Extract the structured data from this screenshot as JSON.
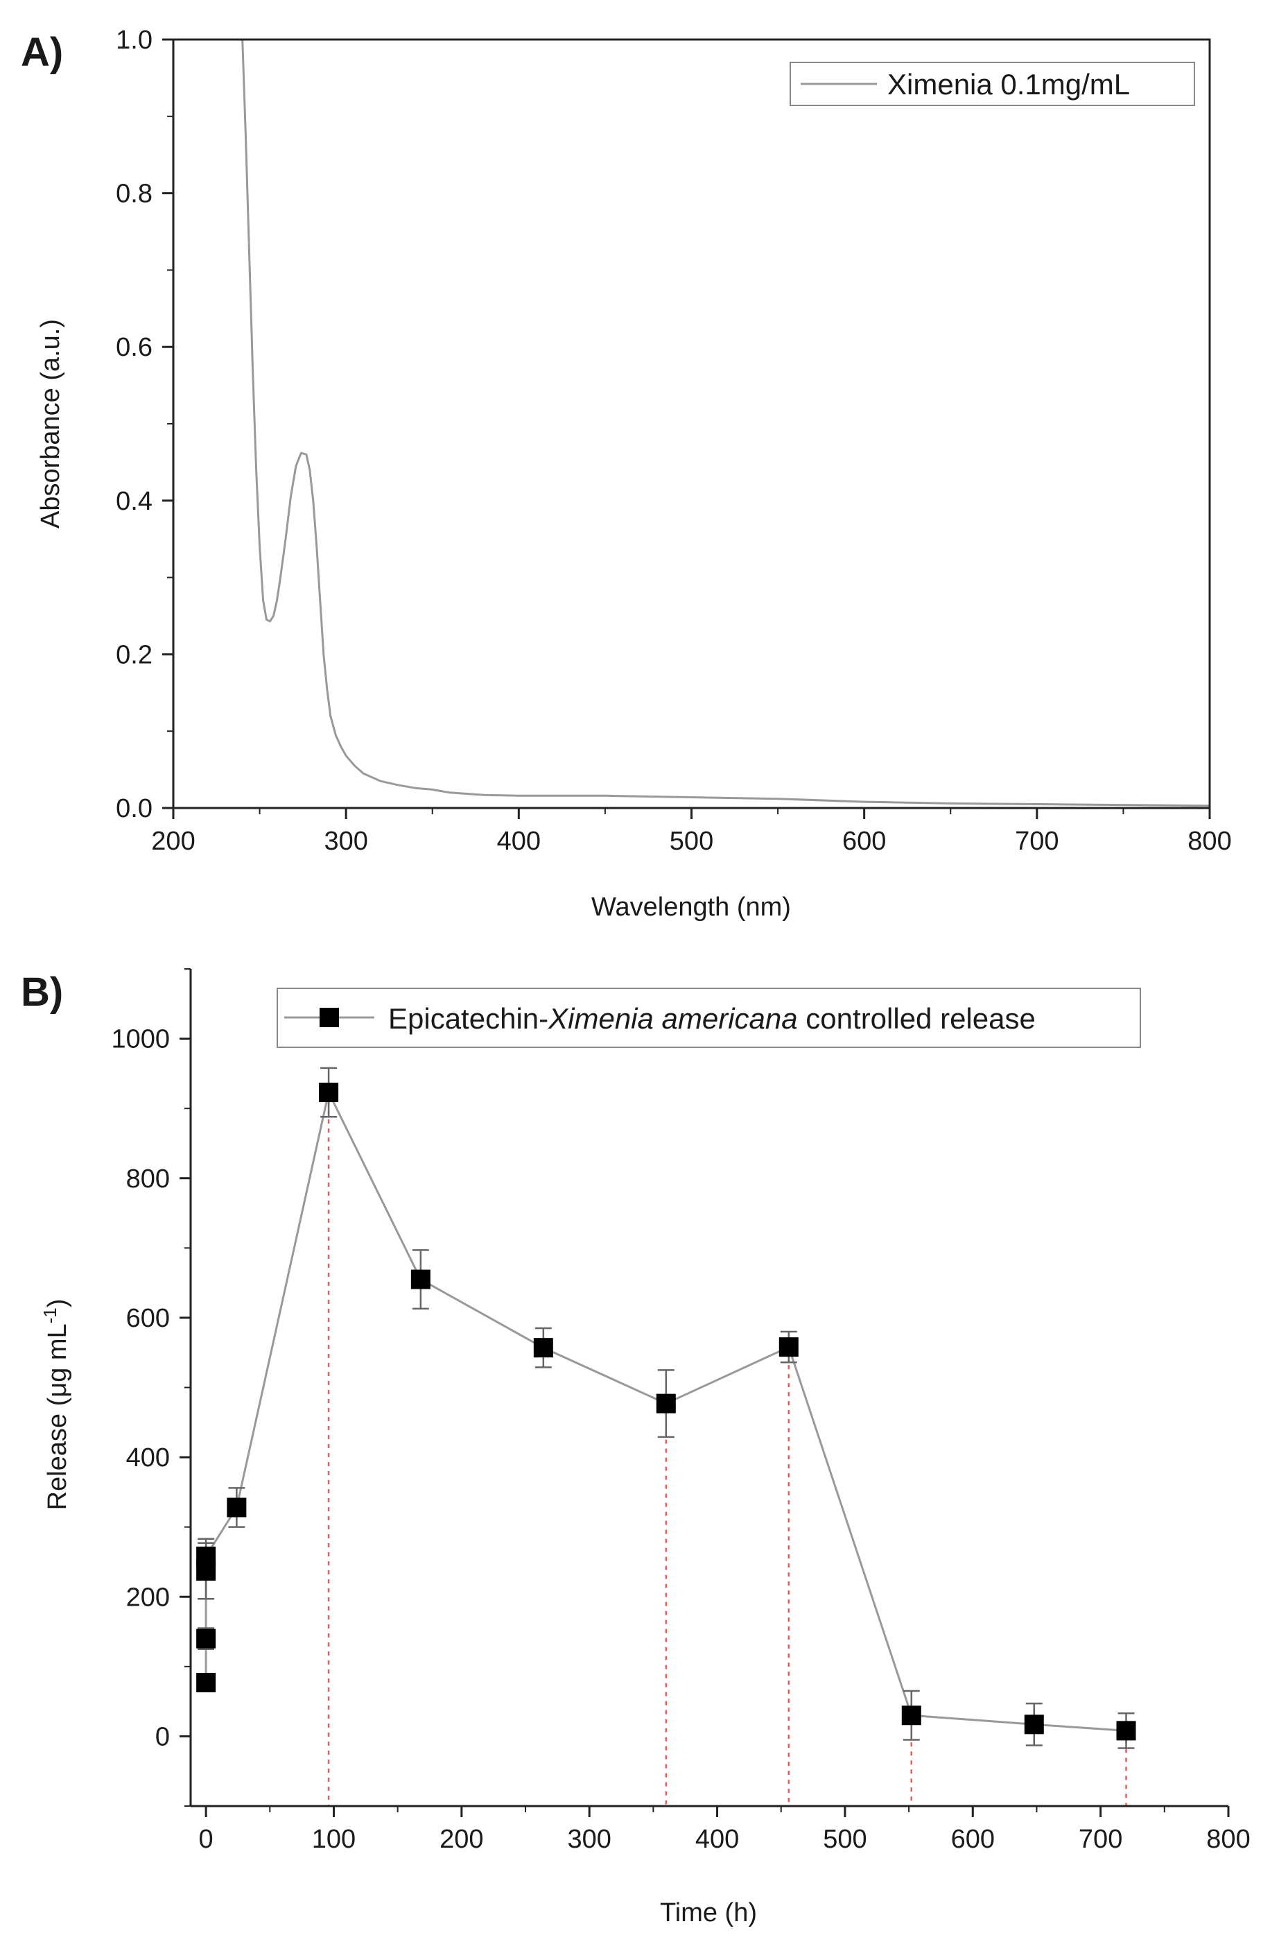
{
  "chart_data": [
    {
      "panel": "A)",
      "type": "line",
      "title": "",
      "xlabel": "Wavelength (nm)",
      "ylabel": "Absorbance (a.u.)",
      "xlim": [
        200,
        800
      ],
      "ylim": [
        0.0,
        1.0
      ],
      "xticks": [
        200,
        300,
        400,
        500,
        600,
        700,
        800
      ],
      "yticks": [
        0.0,
        0.2,
        0.4,
        0.6,
        0.8,
        1.0
      ],
      "xtick_labels": [
        "200",
        "300",
        "400",
        "500",
        "600",
        "700",
        "800"
      ],
      "ytick_labels": [
        "0.0",
        "0.2",
        "0.4",
        "0.6",
        "0.8",
        "1.0"
      ],
      "legend_position": "top-right",
      "series": [
        {
          "name": "Ximenia 0.1mg/mL",
          "color": "#999999",
          "x": [
            240,
            242,
            244,
            246,
            248,
            250,
            252,
            254,
            256,
            258,
            260,
            262,
            265,
            268,
            271,
            274,
            277,
            279,
            281,
            283,
            285,
            287,
            289,
            291,
            294,
            297,
            300,
            305,
            310,
            320,
            330,
            340,
            350,
            360,
            380,
            400,
            450,
            500,
            550,
            600,
            650,
            700,
            750,
            800
          ],
          "y": [
            1.0,
            0.87,
            0.72,
            0.57,
            0.44,
            0.34,
            0.27,
            0.245,
            0.243,
            0.25,
            0.27,
            0.3,
            0.35,
            0.405,
            0.445,
            0.462,
            0.46,
            0.44,
            0.4,
            0.34,
            0.27,
            0.2,
            0.155,
            0.12,
            0.095,
            0.08,
            0.068,
            0.055,
            0.045,
            0.035,
            0.03,
            0.026,
            0.024,
            0.02,
            0.017,
            0.016,
            0.016,
            0.014,
            0.012,
            0.008,
            0.006,
            0.005,
            0.004,
            0.003
          ]
        }
      ]
    },
    {
      "panel": "B)",
      "type": "scatter",
      "title": "",
      "xlabel": "Time (h)",
      "ylabel": "Release (μg mL",
      "ylabel_superscript": "-1",
      "ylabel_close": ")",
      "xlim": [
        -12,
        800
      ],
      "ylim": [
        -100,
        1100
      ],
      "xticks": [
        0,
        100,
        200,
        300,
        400,
        500,
        600,
        700,
        800
      ],
      "yticks": [
        0,
        200,
        400,
        600,
        800,
        1000
      ],
      "xtick_labels": [
        "0",
        "100",
        "200",
        "300",
        "400",
        "500",
        "600",
        "700",
        "800"
      ],
      "ytick_labels": [
        "0",
        "200",
        "400",
        "600",
        "800",
        "1000"
      ],
      "legend_position": "top-center",
      "series": [
        {
          "name_parts": [
            "Epicatechin-",
            "Ximenia americana",
            " controlled release"
          ],
          "color": "#999999",
          "marker_color": "#000000",
          "x": [
            0,
            0,
            0,
            0,
            24,
            96,
            168,
            264,
            360,
            456,
            552,
            648,
            720
          ],
          "y": [
            77,
            140,
            237,
            258,
            328,
            923,
            655,
            557,
            477,
            558,
            30,
            17,
            8
          ],
          "error": [
            8,
            15,
            40,
            25,
            28,
            35,
            42,
            28,
            48,
            22,
            35,
            30,
            25
          ]
        }
      ],
      "reference_lines_x": [
        96,
        360,
        456,
        552,
        720
      ],
      "reference_line_color": "#e06060"
    }
  ]
}
